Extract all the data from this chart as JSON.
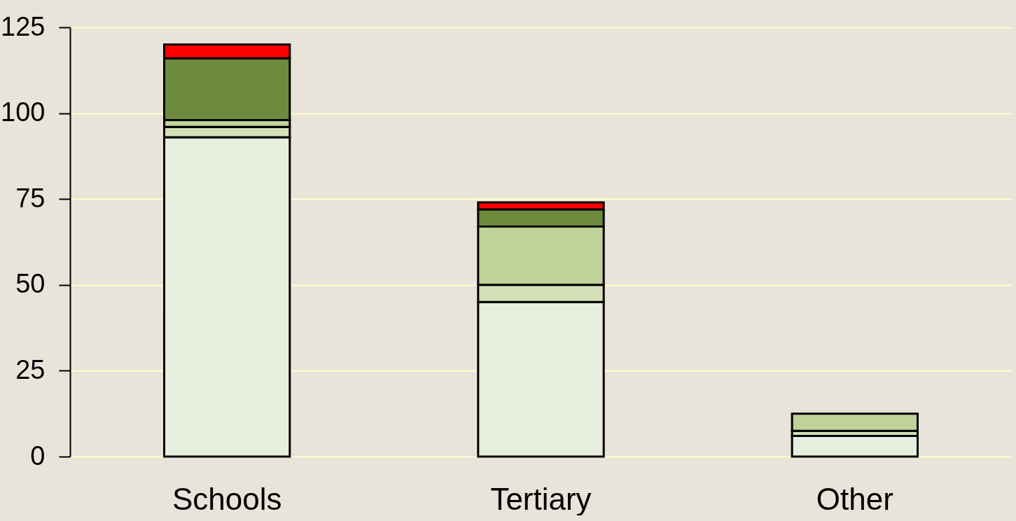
{
  "chart_data": {
    "type": "bar",
    "stacked": true,
    "categories": [
      "Schools",
      "Tertiary",
      "Other"
    ],
    "series": [
      {
        "color": "#e8eedd",
        "values": [
          93,
          45,
          6
        ]
      },
      {
        "color": "#d5e0b8",
        "values": [
          3,
          5,
          1.5
        ]
      },
      {
        "color": "#c0d29a",
        "values": [
          2,
          17,
          5
        ]
      },
      {
        "color": "#6e8b3d",
        "values": [
          18,
          5,
          null
        ]
      },
      {
        "color": "#ff0000",
        "values": [
          4,
          2,
          null
        ]
      }
    ],
    "ylim": [
      0,
      125
    ],
    "yticks": [
      0,
      25,
      50,
      75,
      100,
      125
    ],
    "grid": "y",
    "legend": false
  }
}
